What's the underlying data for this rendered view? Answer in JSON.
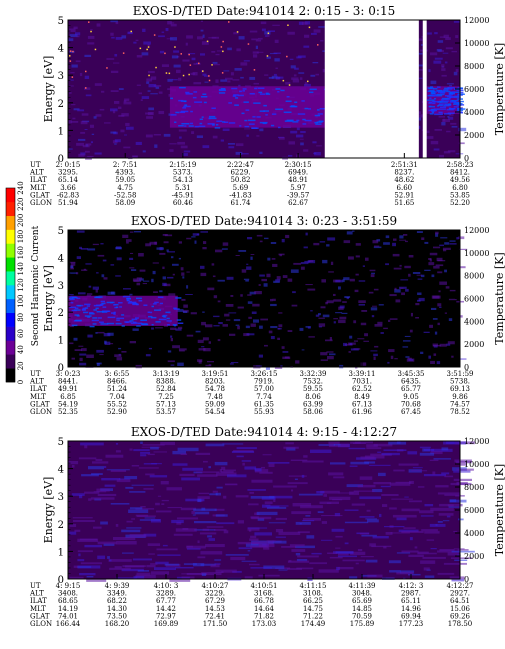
{
  "colorbar": {
    "label": "Second Harmonic Current",
    "ticks": [
      0,
      20,
      40,
      60,
      80,
      100,
      120,
      140,
      160,
      180,
      200,
      220,
      240
    ],
    "colors": [
      "#000000",
      "#3a0058",
      "#6c0096",
      "#2a00c8",
      "#0000ff",
      "#0060ff",
      "#00c8ff",
      "#00ffa0",
      "#00e000",
      "#90ff00",
      "#ffff00",
      "#ffa000",
      "#ff2000",
      "#ff0000"
    ]
  },
  "chart_data": [
    {
      "type": "heatmap",
      "title": "EXOS-D/TED   Date:941014  2: 0:15 - 3: 0:15",
      "ylabel": "Energy [eV]",
      "y2label": "Temperature [K]",
      "ylim": [
        0,
        5
      ],
      "y2lim": [
        0,
        12000
      ],
      "yticks": [
        0,
        1,
        2,
        3,
        4,
        5
      ],
      "y2ticks": [
        0,
        2000,
        4000,
        6000,
        8000,
        10000,
        12000
      ],
      "background_value": 20,
      "gaps": [
        [
          0.655,
          0.895
        ],
        [
          0.905,
          0.915
        ]
      ],
      "bands": [
        {
          "x": [
            0.26,
            0.655
          ],
          "y": [
            1.1,
            2.6
          ],
          "value": 45
        },
        {
          "x": [
            0.915,
            1.0
          ],
          "y": [
            1.6,
            2.6
          ],
          "value": 45
        }
      ],
      "table_labels": [
        "UT",
        "ALT",
        "ILAT",
        "MLT",
        "GLAT",
        "GLON"
      ],
      "columns": [
        {
          "pos": 0.0,
          "values": [
            "2: 0:15",
            "3295.",
            "65.14",
            "3.66",
            "-62.83",
            "51.94"
          ]
        },
        {
          "pos": 0.146,
          "values": [
            "2: 7:51",
            "4393.",
            "59.05",
            "4.75",
            "-52.58",
            "58.09"
          ]
        },
        {
          "pos": 0.293,
          "values": [
            "2:15:19",
            "5373.",
            "54.13",
            "5.31",
            "-45.91",
            "60.46"
          ]
        },
        {
          "pos": 0.44,
          "values": [
            "2:22:47",
            "6229.",
            "50.82",
            "5.69",
            "-41.83",
            "61.74"
          ]
        },
        {
          "pos": 0.587,
          "values": [
            "2:30:15",
            "6949.",
            "48.91",
            "5.97",
            "-39.57",
            "62.67"
          ]
        },
        {
          "pos": 0.858,
          "values": [
            "2:51:31",
            "8237.",
            "48.62",
            "6.60",
            "52.91",
            "51.65"
          ]
        },
        {
          "pos": 1.0,
          "values": [
            "2:58:23",
            "8412.",
            "49.56",
            "6.80",
            "53.85",
            "52.20"
          ]
        }
      ]
    },
    {
      "type": "heatmap",
      "title": "EXOS-D/TED   Date:941014  3: 0:23 - 3:51:59",
      "ylabel": "Energy [eV]",
      "y2label": "Temperature [K]",
      "ylim": [
        0,
        5
      ],
      "y2lim": [
        0,
        12000
      ],
      "yticks": [
        0,
        1,
        2,
        3,
        4,
        5
      ],
      "y2ticks": [
        0,
        2000,
        4000,
        6000,
        8000,
        10000,
        12000
      ],
      "background_value": 18,
      "gaps": [],
      "bands": [
        {
          "x": [
            0.0,
            0.28
          ],
          "y": [
            1.5,
            2.6
          ],
          "value": 45
        }
      ],
      "table_labels": [
        "UT",
        "ALT",
        "ILAT",
        "MLT",
        "GLAT",
        "GLON"
      ],
      "columns": [
        {
          "pos": 0.0,
          "values": [
            "3: 0:23",
            "8441.",
            "49.91",
            "6.85",
            "54.19",
            "52.35"
          ]
        },
        {
          "pos": 0.125,
          "values": [
            "3: 6:55",
            "8466.",
            "51.24",
            "7.04",
            "55.52",
            "52.90"
          ]
        },
        {
          "pos": 0.25,
          "values": [
            "3:13:19",
            "8388.",
            "52.84",
            "7.25",
            "57.13",
            "53.57"
          ]
        },
        {
          "pos": 0.375,
          "values": [
            "3:19:51",
            "8203.",
            "54.78",
            "7.48",
            "59.09",
            "54.54"
          ]
        },
        {
          "pos": 0.5,
          "values": [
            "3:26:15",
            "7919.",
            "57.00",
            "7.74",
            "61.35",
            "55.93"
          ]
        },
        {
          "pos": 0.625,
          "values": [
            "3:32:39",
            "7532.",
            "59.55",
            "8.06",
            "63.99",
            "58.06"
          ]
        },
        {
          "pos": 0.75,
          "values": [
            "3:39:11",
            "7031.",
            "62.52",
            "8.49",
            "67.13",
            "61.96"
          ]
        },
        {
          "pos": 0.875,
          "values": [
            "3:45:35",
            "6435.",
            "65.77",
            "9.05",
            "70.68",
            "67.45"
          ]
        },
        {
          "pos": 1.0,
          "values": [
            "3:51:59",
            "5738.",
            "69.13",
            "9.86",
            "74.57",
            "78.52"
          ]
        }
      ]
    },
    {
      "type": "heatmap",
      "title": "EXOS-D/TED   Date:941014  4: 9:15 - 4:12:27",
      "ylabel": "Energy [eV]",
      "y2label": "Temperature [K]",
      "ylim": [
        0,
        5
      ],
      "y2lim": [
        0,
        12000
      ],
      "yticks": [
        0,
        1,
        2,
        3,
        4,
        5
      ],
      "y2ticks": [
        0,
        2000,
        4000,
        6000,
        8000,
        10000,
        12000
      ],
      "background_value": 28,
      "gaps": [],
      "bands": [],
      "table_labels": [
        "UT",
        "ALT",
        "ILAT",
        "MLT",
        "GLAT",
        "GLON"
      ],
      "columns": [
        {
          "pos": 0.0,
          "values": [
            "4: 9:15",
            "3408.",
            "68.65",
            "14.19",
            "74.01",
            "166.44"
          ]
        },
        {
          "pos": 0.125,
          "values": [
            "4: 9:39",
            "3349.",
            "68.22",
            "14.30",
            "73.50",
            "168.20"
          ]
        },
        {
          "pos": 0.25,
          "values": [
            "4:10: 3",
            "3289.",
            "67.77",
            "14.42",
            "72.97",
            "169.89"
          ]
        },
        {
          "pos": 0.375,
          "values": [
            "4:10:27",
            "3229.",
            "67.29",
            "14.53",
            "72.41",
            "171.50"
          ]
        },
        {
          "pos": 0.5,
          "values": [
            "4:10:51",
            "3168.",
            "66.78",
            "14.64",
            "71.82",
            "173.03"
          ]
        },
        {
          "pos": 0.625,
          "values": [
            "4:11:15",
            "3108.",
            "66.25",
            "14.75",
            "71.22",
            "174.49"
          ]
        },
        {
          "pos": 0.75,
          "values": [
            "4:11:39",
            "3048.",
            "65.69",
            "14.85",
            "70.59",
            "175.89"
          ]
        },
        {
          "pos": 0.875,
          "values": [
            "4:12: 3",
            "2987.",
            "65.11",
            "14.96",
            "69.94",
            "177.23"
          ]
        },
        {
          "pos": 1.0,
          "values": [
            "4:12:27",
            "2927.",
            "64.51",
            "15.06",
            "69.26",
            "178.50"
          ]
        }
      ]
    }
  ]
}
